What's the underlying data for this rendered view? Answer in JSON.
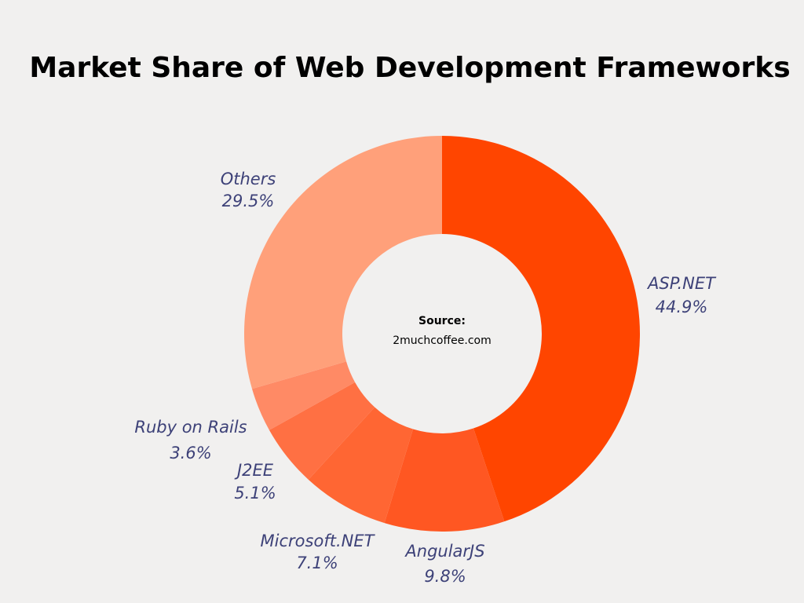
{
  "chart_data": {
    "type": "pie",
    "title": "Market Share of Web Development Frameworks",
    "categories": [
      "ASP.NET",
      "AngularJS",
      "Microsoft.NET",
      "J2EE",
      "Ruby on Rails",
      "Others"
    ],
    "values": [
      44.9,
      9.8,
      7.1,
      5.1,
      3.6,
      29.5
    ],
    "value_labels": [
      "44.9%",
      "9.8%",
      "7.1%",
      "5.1%",
      "3.6%",
      "29.5%"
    ],
    "colors": [
      "#ff4500",
      "#ff5722",
      "#ff6633",
      "#ff7043",
      "#ff8a65",
      "#ffa07a"
    ],
    "annotations": [
      "Source:",
      "2muchcoffee.com"
    ]
  }
}
